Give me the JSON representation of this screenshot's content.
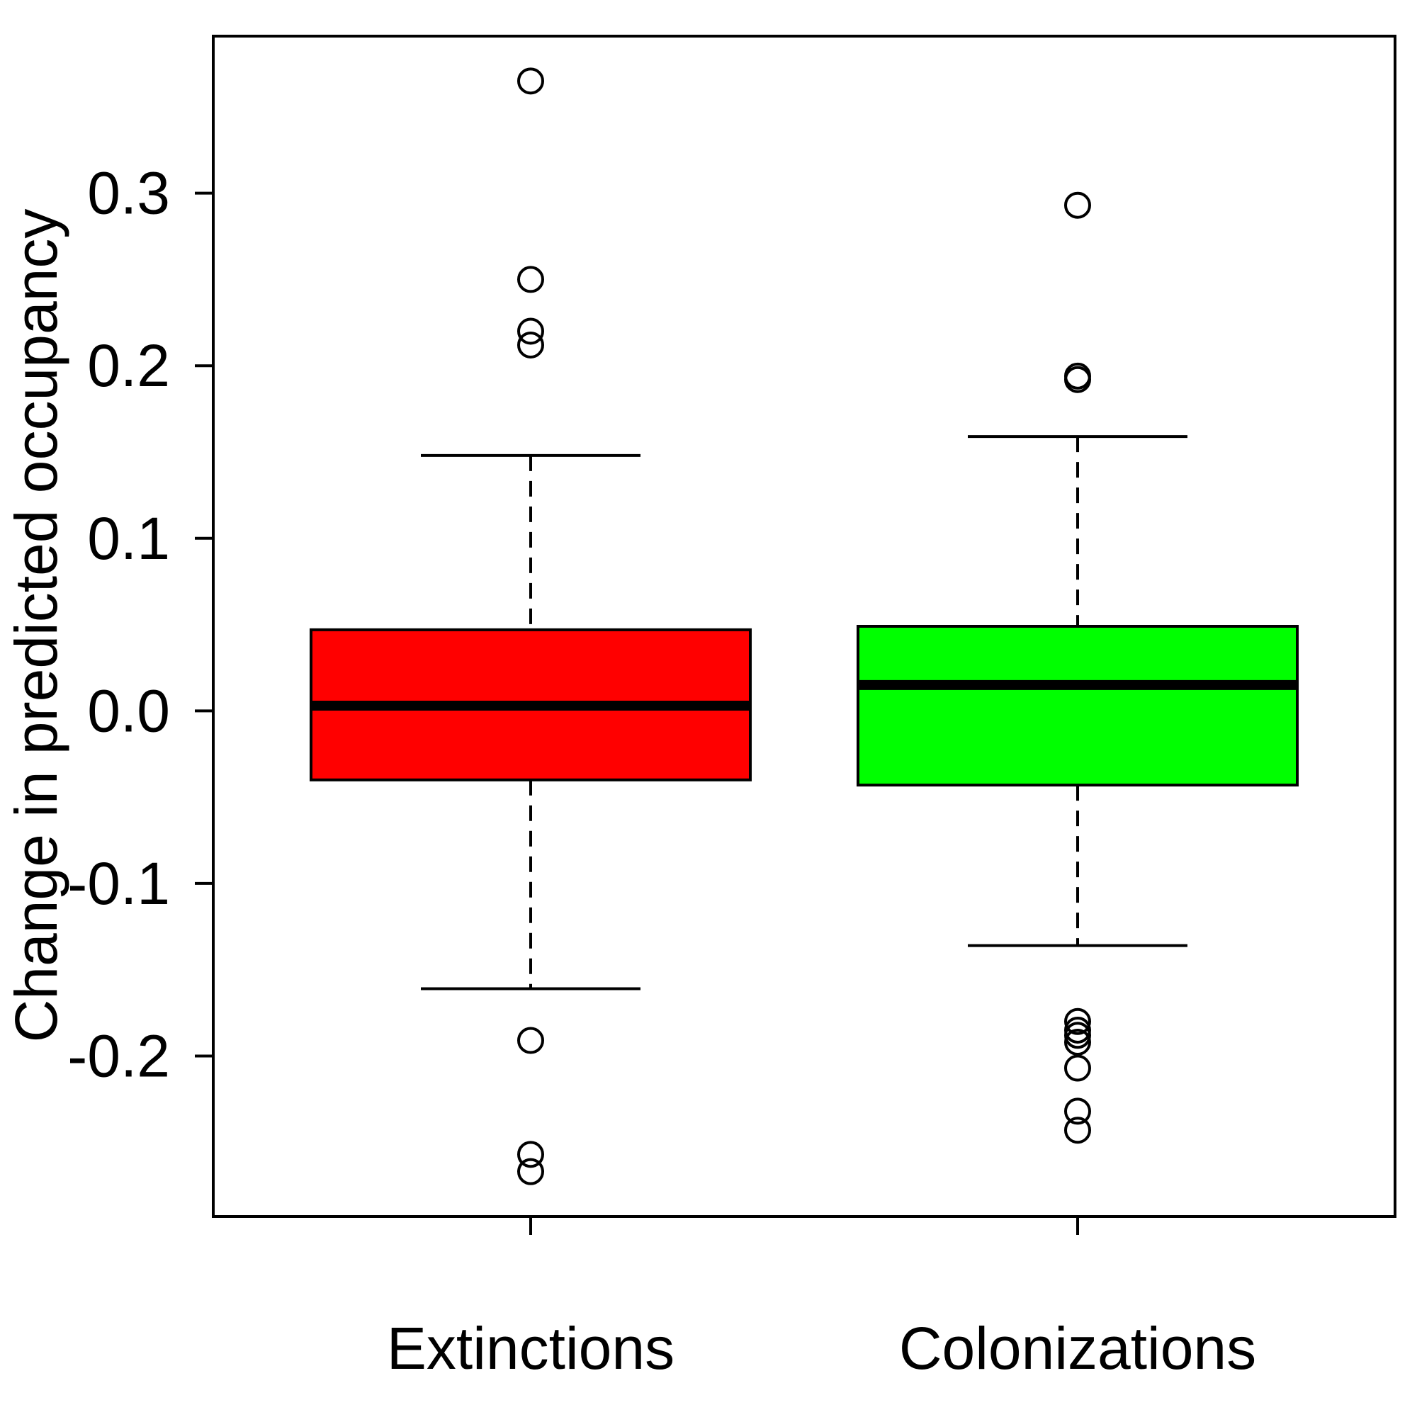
{
  "chart_data": {
    "type": "box",
    "title": "",
    "xlabel": "",
    "ylabel": "Change in predicted occupancy",
    "ylim": [
      -0.293,
      0.391
    ],
    "yticks": [
      -0.2,
      -0.1,
      0.0,
      0.1,
      0.2,
      0.3
    ],
    "ytick_labels": [
      "-0.2",
      "-0.1",
      "0.0",
      "0.1",
      "0.2",
      "0.3"
    ],
    "grid": false,
    "legend": "none",
    "categories": [
      "Extinctions",
      "Colonizations"
    ],
    "boxes": [
      {
        "name": "Extinctions",
        "color": "#ff0000",
        "whisker_low": -0.161,
        "q1": -0.04,
        "median": 0.003,
        "q3": 0.047,
        "whisker_high": 0.148,
        "outliers": [
          0.365,
          0.25,
          0.22,
          0.212,
          -0.191,
          -0.257,
          -0.267
        ]
      },
      {
        "name": "Colonizations",
        "color": "#00ff00",
        "whisker_low": -0.136,
        "q1": -0.043,
        "median": 0.015,
        "q3": 0.049,
        "whisker_high": 0.159,
        "outliers": [
          0.293,
          0.194,
          0.192,
          -0.18,
          -0.185,
          -0.188,
          -0.192,
          -0.207,
          -0.232,
          -0.243
        ]
      }
    ]
  }
}
